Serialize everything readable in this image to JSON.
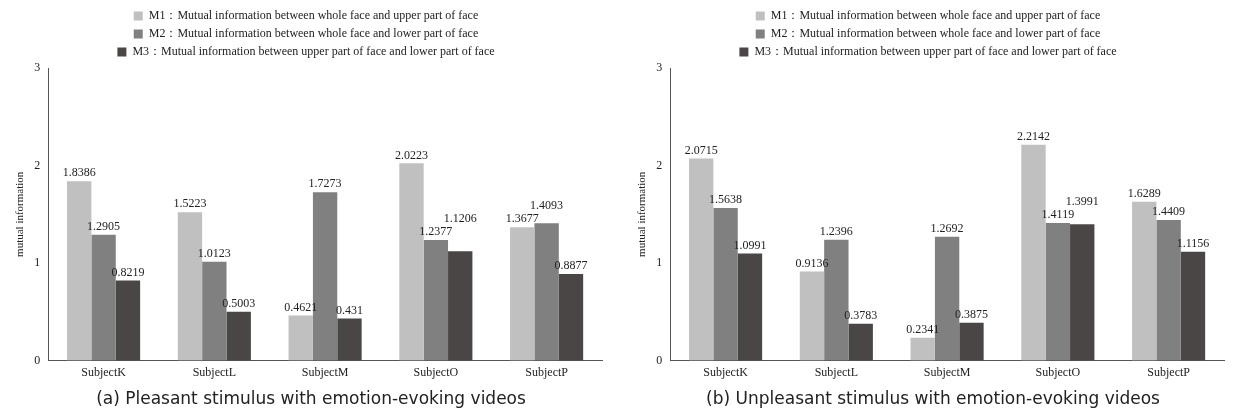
{
  "chart_data": [
    {
      "type": "bar",
      "categories": [
        "SubjectK",
        "SubjectL",
        "SubjectM",
        "SubjectO",
        "SubjectP"
      ],
      "ylabel": "mutual information",
      "ylim": [
        0,
        3
      ],
      "yticks": [
        0,
        1,
        2,
        3
      ],
      "grid": false,
      "legend": "top",
      "data_labels": true,
      "series": [
        {
          "name": "M1：Mutual information between whole face and upper part of face",
          "color": "#c0c0c0",
          "values": [
            1.8386,
            1.5223,
            0.4621,
            2.0223,
            1.3677
          ]
        },
        {
          "name": "M2：Mutual information between whole face and lower part of face",
          "color": "#808080",
          "values": [
            1.2905,
            1.0123,
            1.7273,
            1.2377,
            1.4093
          ]
        },
        {
          "name": "M3：Mutual information between upper part of face and lower part of face",
          "color": "#4a4646",
          "values": [
            0.8219,
            0.5003,
            0.431,
            1.1206,
            0.8877
          ]
        }
      ],
      "annotations": [
        "(a) Pleasant stimulus with emotion-evoking videos"
      ]
    },
    {
      "type": "bar",
      "categories": [
        "SubjectK",
        "SubjectL",
        "SubjectM",
        "SubjectO",
        "SubjectP"
      ],
      "ylabel": "mutual information",
      "ylim": [
        0,
        3
      ],
      "yticks": [
        0,
        1,
        2,
        3
      ],
      "grid": false,
      "legend": "top",
      "data_labels": true,
      "series": [
        {
          "name": "M1：Mutual information between whole face and upper part of face",
          "color": "#c0c0c0",
          "values": [
            2.0715,
            0.9136,
            0.2341,
            2.2142,
            1.6289
          ]
        },
        {
          "name": "M2：Mutual information between whole face and lower part of face",
          "color": "#808080",
          "values": [
            1.5638,
            1.2396,
            1.2692,
            1.4119,
            1.4409
          ]
        },
        {
          "name": "M3：Mutual information between upper part of face and lower part of face",
          "color": "#4a4646",
          "values": [
            1.0991,
            0.3783,
            0.3875,
            1.3991,
            1.1156
          ]
        }
      ],
      "annotations": [
        "(b) Unpleasant stimulus with emotion-evoking videos"
      ]
    }
  ]
}
